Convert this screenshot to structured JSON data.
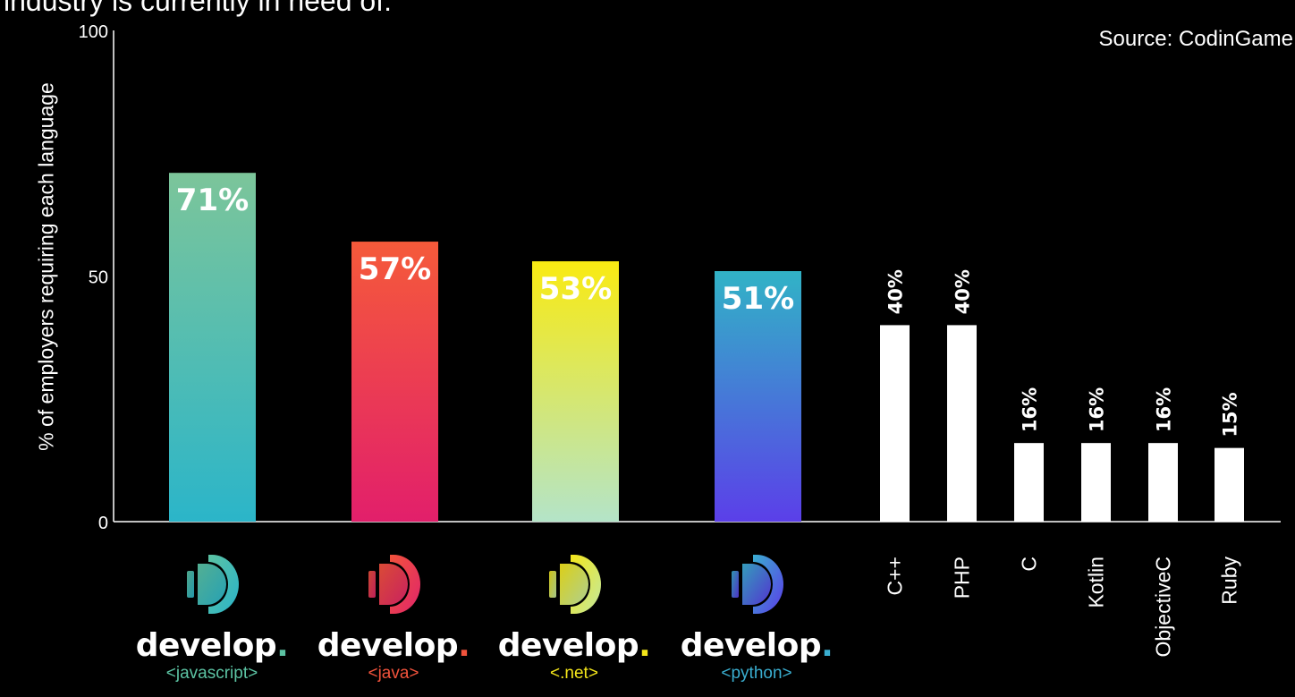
{
  "title": "industry is currently in need of:",
  "source": "Source: CodinGame",
  "chart_data": {
    "type": "bar",
    "title": "industry is currently in need of:",
    "ylabel": "% of employers requiring each language",
    "ylim": [
      0,
      100
    ],
    "yticks": [
      "0",
      "50",
      "100"
    ],
    "grid": false,
    "categories": [
      "JavaScript",
      "Java",
      ".NET",
      "Python",
      "C++",
      "PHP",
      "C",
      "Kotlin",
      "ObjectiveC",
      "Ruby"
    ],
    "values": [
      71,
      57,
      53,
      51,
      40,
      40,
      16,
      16,
      16,
      15
    ],
    "value_labels": [
      "71%",
      "57%",
      "53%",
      "51%",
      "40%",
      "40%",
      "16%",
      "16%",
      "16%",
      "15%"
    ],
    "tick_labels": [
      "C++",
      "PHP",
      "C",
      "Kotlin",
      "ObjectiveC",
      "Ruby"
    ]
  },
  "logos": [
    {
      "word": "develop",
      "dot": ".",
      "tag": "<javascript>",
      "accent": "#5cc3a3",
      "accent2": "#2ab3c9"
    },
    {
      "word": "develop",
      "dot": ".",
      "tag": "<java>",
      "accent": "#f2533c",
      "accent2": "#e0256a"
    },
    {
      "word": "develop",
      "dot": ".",
      "tag": "<.net>",
      "accent": "#f4e61a",
      "accent2": "#c2e8a0"
    },
    {
      "word": "develop",
      "dot": ".",
      "tag": "<python>",
      "accent": "#3aaed0",
      "accent2": "#5b3be8"
    }
  ],
  "colors": {
    "bar_plain": "#ffffff",
    "javascript": [
      "#7cc59a",
      "#2bb5c9"
    ],
    "java": [
      "#f55a3a",
      "#e21f6b"
    ],
    "net": [
      "#f9ea12",
      "#b4e4c8"
    ],
    "python": [
      "#31b3c6",
      "#5b3fe9"
    ]
  }
}
